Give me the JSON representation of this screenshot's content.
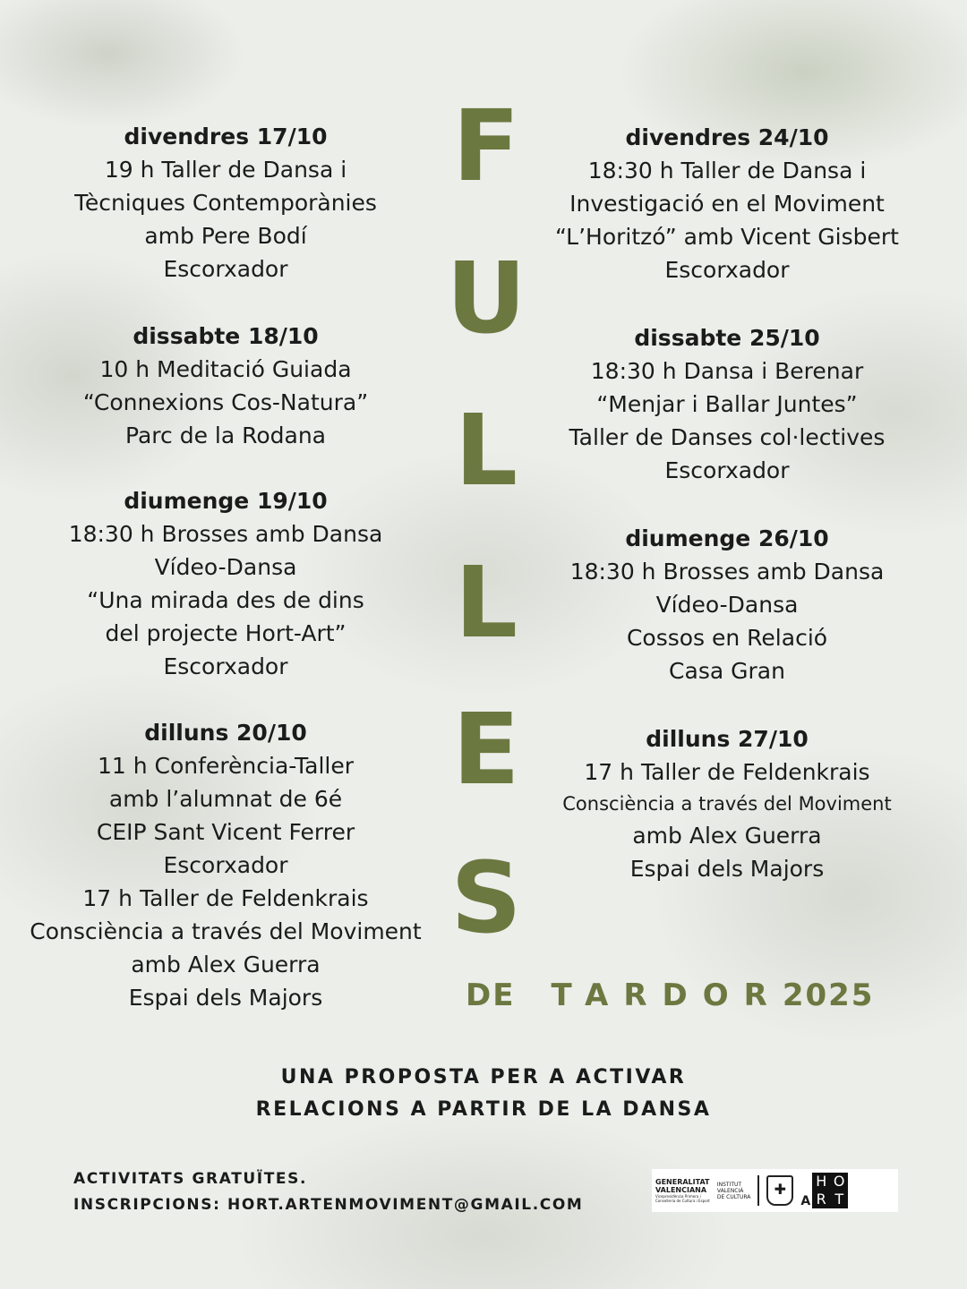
{
  "title_letters": [
    "F",
    "U",
    "L",
    "L",
    "E",
    "S"
  ],
  "subtitle": {
    "de": "DE",
    "tardor": "TARDOR",
    "year": "2025"
  },
  "left_events": [
    {
      "date": "divendres 17/10",
      "lines": [
        "19 h Taller de  Dansa i",
        "Tècniques Contemporànies",
        "amb Pere Bodí",
        "Escorxador"
      ]
    },
    {
      "date": "dissabte 18/10",
      "lines": [
        "10 h Meditació Guiada",
        "“Connexions Cos-Natura”",
        "Parc de la Rodana"
      ]
    },
    {
      "date": "diumenge 19/10",
      "lines": [
        "18:30 h Brosses amb Dansa",
        "Vídeo-Dansa",
        "“Una mirada des de dins",
        "del projecte Hort-Art”",
        "Escorxador"
      ]
    },
    {
      "date": "dilluns 20/10",
      "lines": [
        "11 h Conferència-Taller",
        "amb l’alumnat de 6é",
        "CEIP Sant Vicent Ferrer",
        "Escorxador",
        "17 h Taller de Feldenkrais",
        "Consciència a través del Moviment",
        "amb Alex Guerra",
        "Espai dels Majors"
      ]
    }
  ],
  "right_events": [
    {
      "date": "divendres 24/10",
      "lines": [
        "18:30 h Taller de Dansa i",
        "Investigació en el Moviment",
        "“L’Horitzó” amb Vicent Gisbert",
        "Escorxador"
      ]
    },
    {
      "date": "dissabte 25/10",
      "lines": [
        "18:30 h Dansa i Berenar",
        "“Menjar i Ballar Juntes”",
        "Taller de Danses col·lectives",
        "Escorxador"
      ]
    },
    {
      "date": "diumenge 26/10",
      "lines": [
        "18:30 h Brosses amb Dansa",
        "Vídeo-Dansa",
        "Cossos en Relació",
        "Casa Gran"
      ]
    },
    {
      "date": "dilluns 27/10",
      "lines": [
        "17 h Taller de Feldenkrais",
        "Consciència a través del Moviment",
        "amb Alex Guerra",
        "Espai dels Majors"
      ]
    }
  ],
  "tagline": [
    "UNA PROPOSTA PER A ACTIVAR",
    "RELACIONS A PARTIR DE LA DANSA"
  ],
  "footer": [
    "ACTIVITATS GRATUÏTES.",
    "INSCRIPCIONS: HORT.ARTENMOVIMENT@GMAIL.COM"
  ],
  "logos": {
    "generalitat": [
      "GENERALITAT",
      "VALENCIANA",
      "Vicepresidència Primera i",
      "Conselleria de Cultura i Esport"
    ],
    "ivc": [
      "INSTITUT",
      "VALENCIÀ",
      "DE CULTURA"
    ],
    "art": "A",
    "hort": [
      "H",
      "O",
      "R",
      "T"
    ]
  },
  "colors": {
    "accent": "#6b7840",
    "text": "#1b1b1b"
  }
}
